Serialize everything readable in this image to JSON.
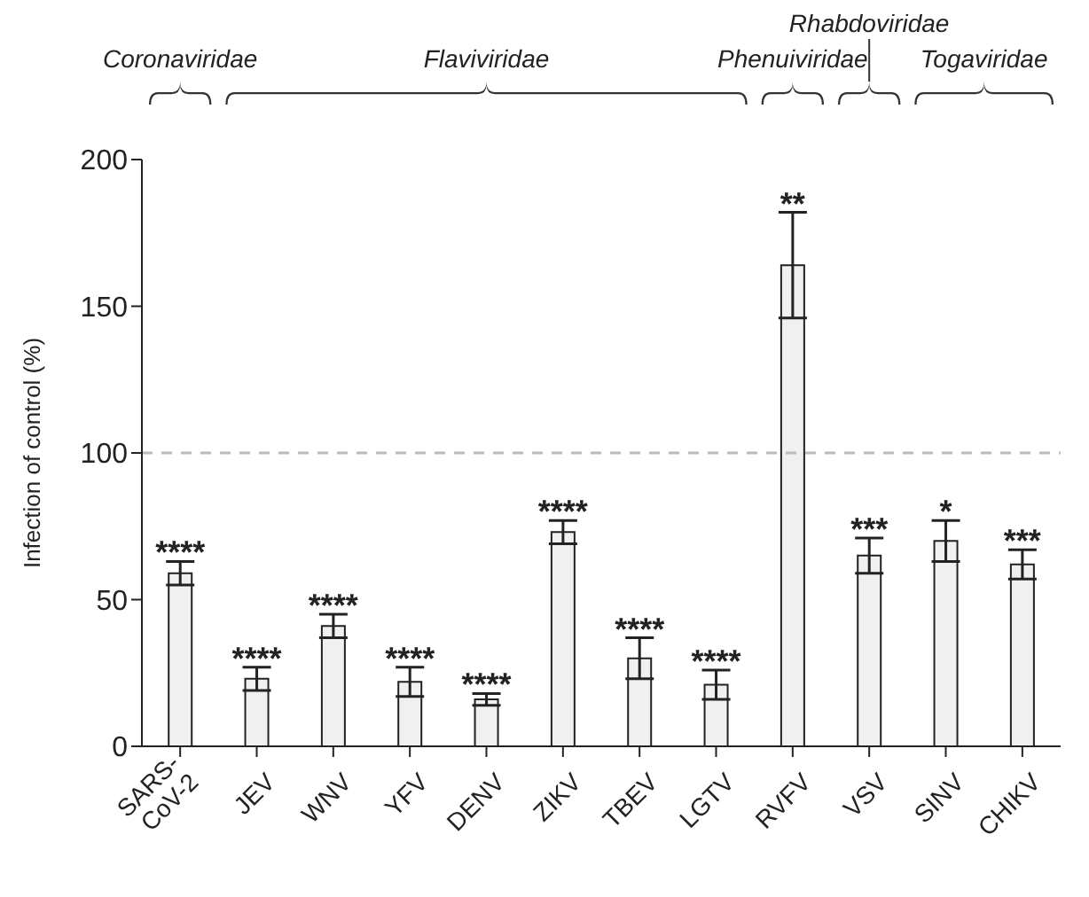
{
  "chart_data": {
    "type": "bar",
    "ylabel": "Infection of control (%)",
    "categories": [
      "SARS-CoV-2",
      "JEV",
      "WNV",
      "YFV",
      "DENV",
      "ZIKV",
      "TBEV",
      "LGTV",
      "RVFV",
      "VSV",
      "SINV",
      "CHIKV"
    ],
    "values": [
      59,
      23,
      41,
      22,
      16,
      73,
      30,
      21,
      164,
      65,
      70,
      62
    ],
    "errors": [
      4,
      4,
      4,
      5,
      2,
      4,
      7,
      5,
      18,
      6,
      7,
      5
    ],
    "color": "#f0f0f0",
    "ylim": [
      0,
      200
    ],
    "yticks": [
      0,
      50,
      100,
      150,
      200
    ],
    "ref_lines": [
      {
        "axis": "y",
        "value": 100,
        "label": null,
        "color": "#bbbbbb",
        "line_style": "dashed"
      }
    ],
    "annotations": [
      "Coronaviridae",
      "Flaviviridae",
      "Phenuiviridae",
      "Rhabdoviridae",
      "Togaviridae",
      {
        "text": "****",
        "x": "SARS-CoV-2",
        "y": 63
      },
      {
        "text": "****",
        "x": "JEV",
        "y": 27
      },
      {
        "text": "****",
        "x": "WNV",
        "y": 45
      },
      {
        "text": "****",
        "x": "YFV",
        "y": 27
      },
      {
        "text": "****",
        "x": "DENV",
        "y": 18
      },
      {
        "text": "****",
        "x": "ZIKV",
        "y": 77
      },
      {
        "text": "****",
        "x": "TBEV",
        "y": 37
      },
      {
        "text": "****",
        "x": "LGTV",
        "y": 26
      },
      {
        "text": "**",
        "x": "RVFV",
        "y": 182
      },
      {
        "text": "***",
        "x": "VSV",
        "y": 71
      },
      {
        "text": "*",
        "x": "SINV",
        "y": 77
      },
      {
        "text": "***",
        "x": "CHIKV",
        "y": 67
      }
    ]
  }
}
